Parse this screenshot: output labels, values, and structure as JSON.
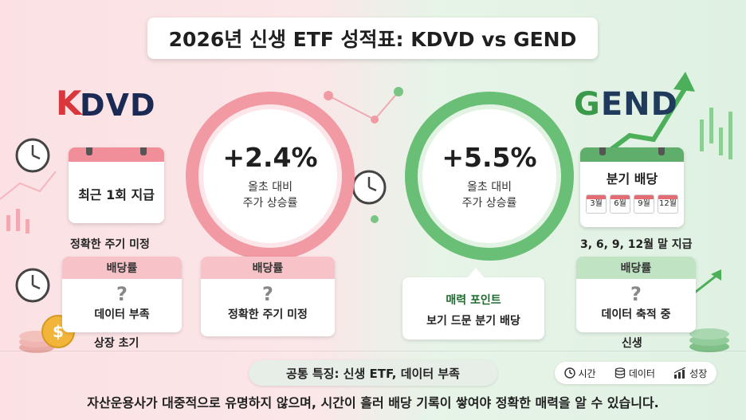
{
  "title": "2026년 신생 ETF 성적표: KDVD vs GEND",
  "kdvd": {
    "logo_k": "K",
    "logo_rest": "DVD",
    "return": "+2.4%",
    "return_label_1": "올초 대비",
    "return_label_2": "주가 상승률",
    "calendar_text": "최근 1회 지급",
    "calendar_caption": "정확한 주기 미정",
    "card1_head": "배당률",
    "card1_q": "?",
    "card1_text": "데이터 부족",
    "card1_footer": "상장 초기",
    "card2_head": "배당률",
    "card2_q": "?",
    "card2_text": "정확한 주기 미정",
    "accent": "#f19aa4"
  },
  "gend": {
    "logo_g": "G",
    "logo_rest": "END",
    "return": "+5.5%",
    "return_label_1": "올초 대비",
    "return_label_2": "주가 상승률",
    "calendar_text": "분기 배당",
    "months": [
      "3월",
      "6월",
      "9월",
      "12월"
    ],
    "calendar_caption": "3, 6, 9, 12월 말 지급",
    "callout_title": "매력 포인트",
    "callout_text": "보기 드문 분기 배당",
    "card_head": "배당률",
    "card_q": "?",
    "card_text": "데이터 축적 중",
    "card_footer": "신생",
    "accent": "#6abf76"
  },
  "common": "공통 특징: 신생 ETF, 데이터 부족",
  "legend": [
    {
      "icon": "clock-icon",
      "label": "시간"
    },
    {
      "icon": "database-icon",
      "label": "데이터"
    },
    {
      "icon": "growth-chart-icon",
      "label": "성장"
    }
  ],
  "footer": "자산운용사가 대중적으로 유명하지 않으며, 시간이 흘러 배당 기록이 쌓여야 정확한 매력을 알 수 있습니다."
}
